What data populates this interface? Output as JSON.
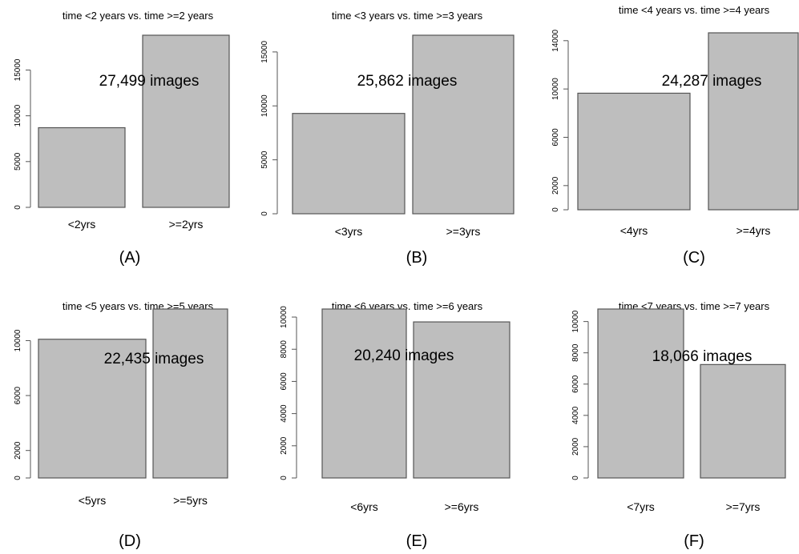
{
  "chart_data": [
    {
      "type": "bar",
      "panel_label": "(A)",
      "title": "time <2 years vs. time >=2 years",
      "categories": [
        "<2yrs",
        ">=2yrs"
      ],
      "values": [
        8700,
        18800
      ],
      "yticks": [
        0,
        5000,
        10000,
        15000
      ],
      "ylim": [
        0,
        18800
      ],
      "annotation": "27,499 images",
      "grid": false
    },
    {
      "type": "bar",
      "panel_label": "(B)",
      "title": "time <3 years vs. time >=3 years",
      "categories": [
        "<3yrs",
        ">=3yrs"
      ],
      "values": [
        9300,
        16550
      ],
      "yticks": [
        0,
        5000,
        10000,
        15000
      ],
      "ylim": [
        0,
        16550
      ],
      "annotation": "25,862 images",
      "grid": false
    },
    {
      "type": "bar",
      "panel_label": "(C)",
      "title": "time <4 years vs. time >=4 years",
      "categories": [
        "<4yrs",
        ">=4yrs"
      ],
      "values": [
        9650,
        14650
      ],
      "yticks": [
        0,
        2000,
        6000,
        10000,
        14000
      ],
      "ylim": [
        0,
        14650
      ],
      "annotation": "24,287 images",
      "grid": false
    },
    {
      "type": "bar",
      "panel_label": "(D)",
      "title": "time <5 years vs. time >=5 years",
      "categories": [
        "<5yrs",
        ">=5yrs"
      ],
      "values": [
        10100,
        12300
      ],
      "yticks": [
        0,
        2000,
        6000,
        10000
      ],
      "ylim": [
        0,
        12300
      ],
      "annotation": "22,435 images",
      "grid": false
    },
    {
      "type": "bar",
      "panel_label": "(E)",
      "title": "time <6 years vs. time >=6 years",
      "categories": [
        "<6yrs",
        ">=6yrs"
      ],
      "values": [
        10500,
        9700
      ],
      "yticks": [
        0,
        2000,
        4000,
        6000,
        8000,
        10000
      ],
      "ylim": [
        0,
        10500
      ],
      "annotation": "20,240 images",
      "grid": false
    },
    {
      "type": "bar",
      "panel_label": "(F)",
      "title": "time <7 years vs. time >=7 years",
      "categories": [
        "<7yrs",
        ">=7yrs"
      ],
      "values": [
        10800,
        7250
      ],
      "yticks": [
        0,
        2000,
        4000,
        6000,
        8000,
        10000
      ],
      "ylim": [
        0,
        10800
      ],
      "annotation": "18,066 images",
      "grid": false
    }
  ]
}
